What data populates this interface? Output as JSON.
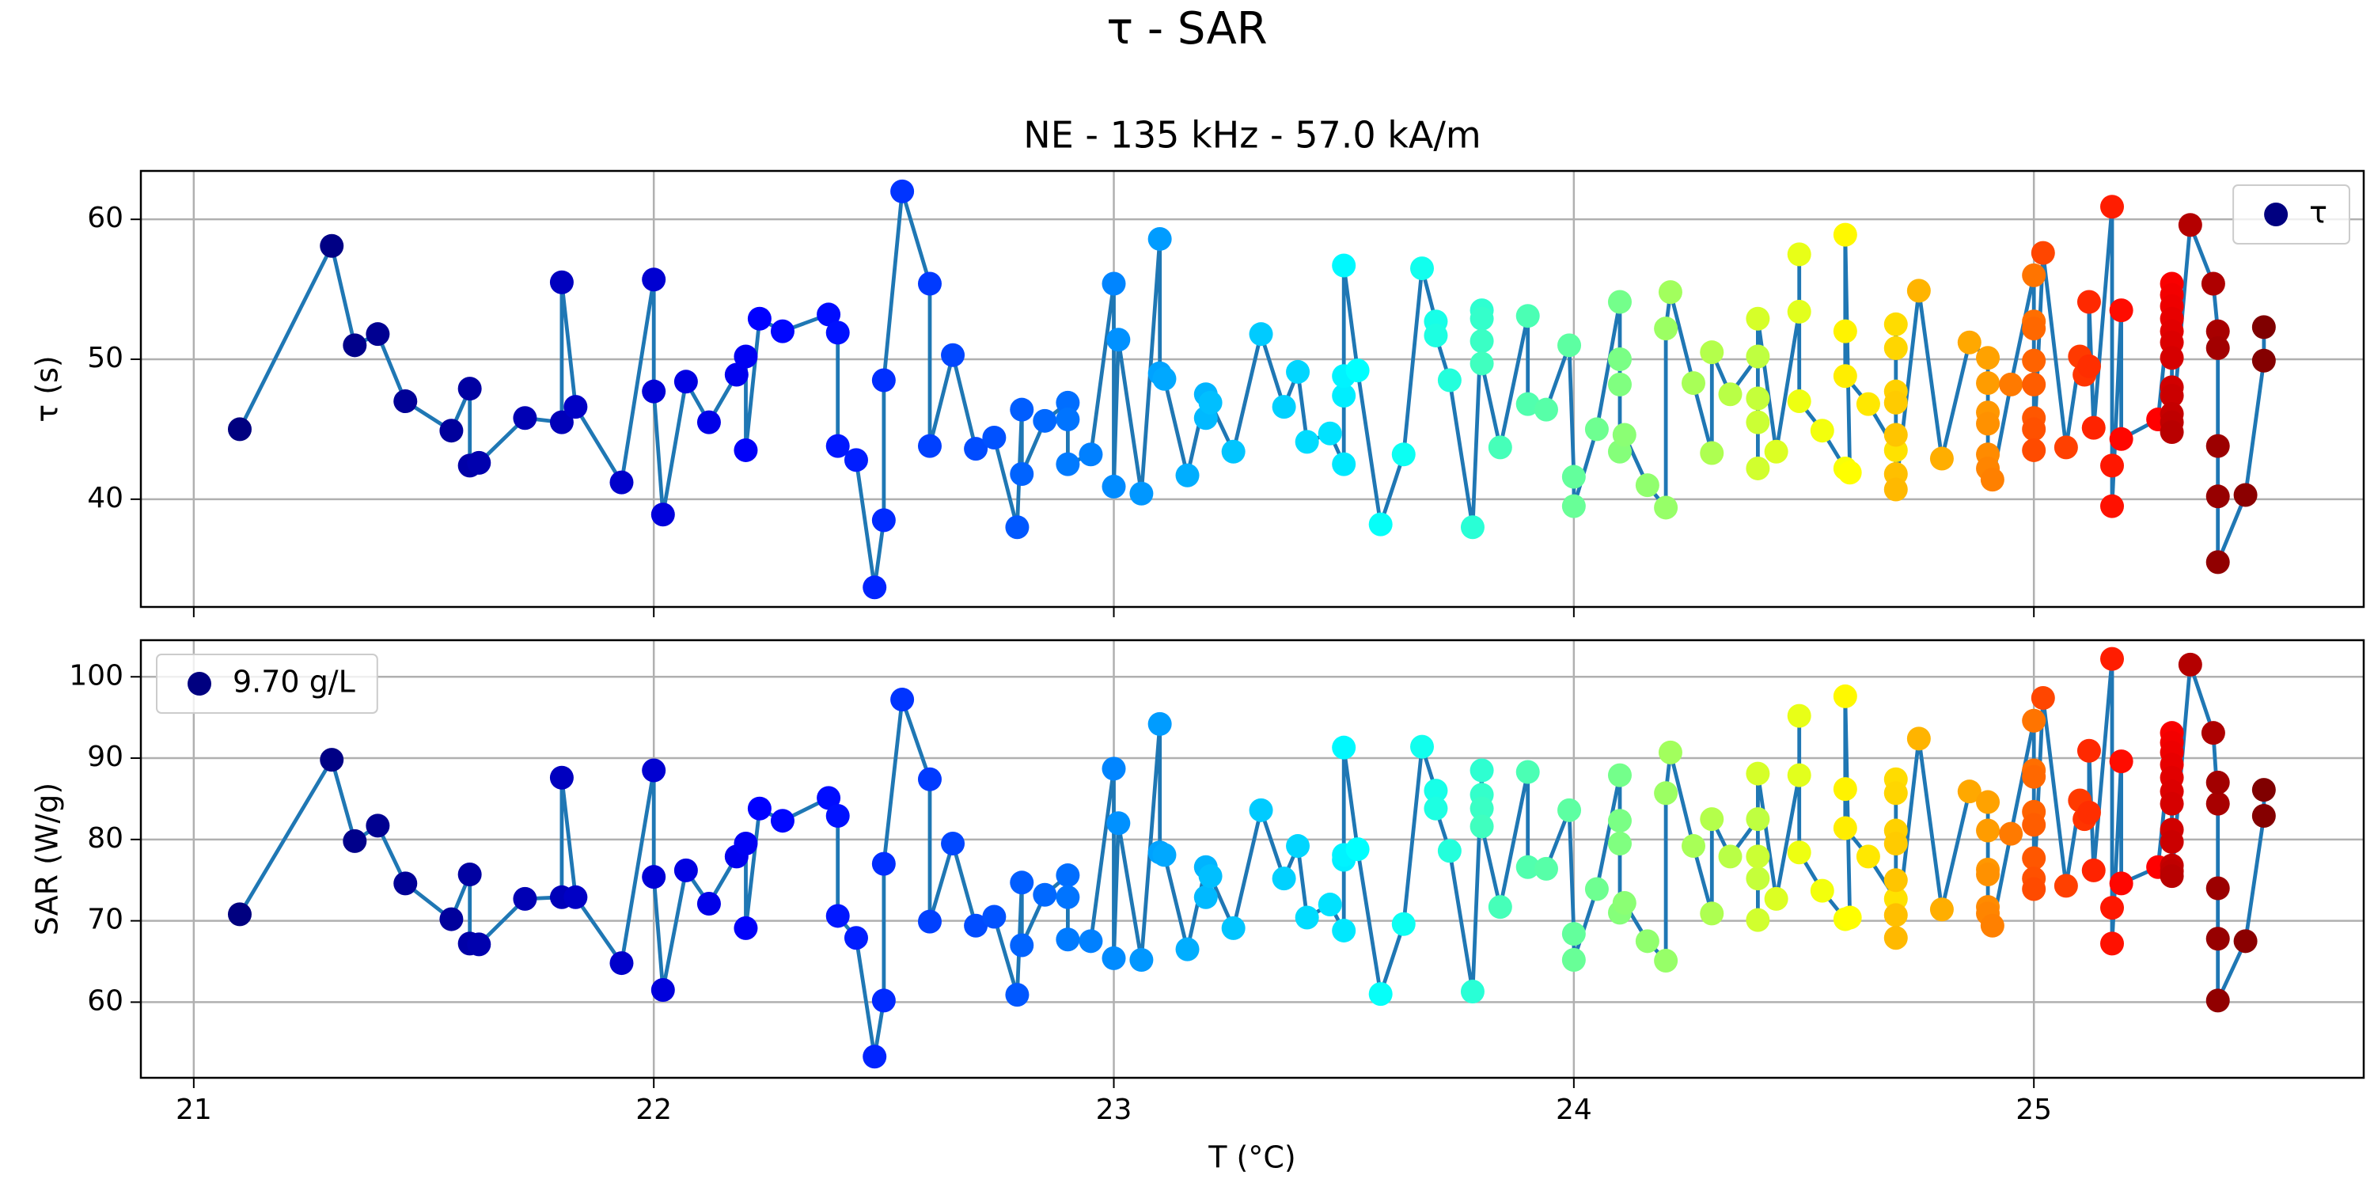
{
  "title": "τ - SAR",
  "chart_data": [
    {
      "type": "line",
      "title": "NE - 135 kHz - 57.0 kA/m",
      "ylabel": "τ (s)",
      "x": [
        21.1,
        21.3,
        21.35,
        21.4,
        21.46,
        21.56,
        21.6,
        21.6,
        21.62,
        21.72,
        21.8,
        21.8,
        21.83,
        21.93,
        22.0,
        22.0,
        22.02,
        22.07,
        22.12,
        22.18,
        22.2,
        22.2,
        22.23,
        22.28,
        22.38,
        22.4,
        22.4,
        22.44,
        22.48,
        22.5,
        22.5,
        22.54,
        22.6,
        22.6,
        22.65,
        22.7,
        22.74,
        22.79,
        22.8,
        22.8,
        22.85,
        22.9,
        22.9,
        22.9,
        22.95,
        23.0,
        23.0,
        23.01,
        23.06,
        23.1,
        23.1,
        23.11,
        23.16,
        23.2,
        23.2,
        23.21,
        23.26,
        23.32,
        23.37,
        23.4,
        23.42,
        23.47,
        23.5,
        23.5,
        23.5,
        23.5,
        23.53,
        23.58,
        23.63,
        23.67,
        23.7,
        23.7,
        23.73,
        23.78,
        23.8,
        23.8,
        23.8,
        23.8,
        23.84,
        23.9,
        23.9,
        23.94,
        23.99,
        24.0,
        24.0,
        24.05,
        24.1,
        24.1,
        24.1,
        24.1,
        24.11,
        24.16,
        24.2,
        24.2,
        24.21,
        24.26,
        24.3,
        24.3,
        24.34,
        24.4,
        24.4,
        24.4,
        24.4,
        24.4,
        24.44,
        24.49,
        24.49,
        24.49,
        24.54,
        24.59,
        24.6,
        24.59,
        24.59,
        24.59,
        24.64,
        24.7,
        24.7,
        24.7,
        24.7,
        24.7,
        24.7,
        24.7,
        24.7,
        24.75,
        24.8,
        24.86,
        24.9,
        24.9,
        24.9,
        24.9,
        24.9,
        24.9,
        24.91,
        24.95,
        25.0,
        25.0,
        25.0,
        25.0,
        25.0,
        25.0,
        25.0,
        25.0,
        25.02,
        25.07,
        25.1,
        25.11,
        25.12,
        25.12,
        25.13,
        25.17,
        25.17,
        25.17,
        25.19,
        25.19,
        25.27,
        25.3,
        25.3,
        25.3,
        25.3,
        25.3,
        25.3,
        25.3,
        25.3,
        25.3,
        25.3,
        25.3,
        25.3,
        25.34,
        25.39,
        25.4,
        25.4,
        25.4,
        25.4,
        25.4,
        25.46,
        25.5,
        25.5
      ],
      "series": [
        {
          "name": "τ",
          "color": "#1f77b4",
          "marker_colormap": "jet",
          "values": [
            45.0,
            58.1,
            51.0,
            51.8,
            47.0,
            44.9,
            47.9,
            42.4,
            42.6,
            45.8,
            45.5,
            55.5,
            46.6,
            41.2,
            55.7,
            47.7,
            38.9,
            48.4,
            45.5,
            48.9,
            50.2,
            43.5,
            52.9,
            52.0,
            53.2,
            51.9,
            43.8,
            42.8,
            33.7,
            38.5,
            48.5,
            62.0,
            55.4,
            43.8,
            50.3,
            43.6,
            44.4,
            38.0,
            46.4,
            41.8,
            45.6,
            46.9,
            45.7,
            42.5,
            43.2,
            55.4,
            40.9,
            51.4,
            40.4,
            58.6,
            49.0,
            48.6,
            41.7,
            47.5,
            45.8,
            46.9,
            43.4,
            51.8,
            46.6,
            49.1,
            44.1,
            44.7,
            42.5,
            47.4,
            48.8,
            56.7,
            49.2,
            38.2,
            43.2,
            56.5,
            52.7,
            51.7,
            48.5,
            38.0,
            53.5,
            52.9,
            51.3,
            49.7,
            43.7,
            53.1,
            46.8,
            46.4,
            51.0,
            41.6,
            39.5,
            45.0,
            54.1,
            50.0,
            48.2,
            43.4,
            44.6,
            41.0,
            39.4,
            52.2,
            54.8,
            48.3,
            43.3,
            50.5,
            47.5,
            50.2,
            47.2,
            45.5,
            42.2,
            52.9,
            43.4,
            53.4,
            57.5,
            47.0,
            44.9,
            42.2,
            41.9,
            58.9,
            52.0,
            48.8,
            46.8,
            43.5,
            52.5,
            50.8,
            47.7,
            46.9,
            44.6,
            41.8,
            40.7,
            54.9,
            42.9,
            51.2,
            50.1,
            48.3,
            46.2,
            45.4,
            43.2,
            42.2,
            41.4,
            48.2,
            56.0,
            52.7,
            52.2,
            49.9,
            48.2,
            45.8,
            45.0,
            43.5,
            57.6,
            43.7,
            50.2,
            48.9,
            49.5,
            54.1,
            45.1,
            60.9,
            42.4,
            39.5,
            53.5,
            44.3,
            45.7,
            55.4,
            54.6,
            53.8,
            52.9,
            52.0,
            51.2,
            50.1,
            48.0,
            47.4,
            46.1,
            45.5,
            44.8,
            59.6,
            55.4,
            52.0,
            50.8,
            43.8,
            40.2,
            35.5,
            40.3,
            49.9,
            52.3
          ]
        }
      ],
      "xlim": [
        20.885,
        25.717
      ],
      "xticks": [
        21,
        22,
        23,
        24,
        25
      ],
      "show_xticklabels": false,
      "ylim": [
        32.3,
        63.46
      ],
      "yticks": [
        40,
        50,
        60
      ],
      "grid": true,
      "legend": "upper right"
    },
    {
      "type": "line",
      "ylabel": "SAR (W/g)",
      "xlabel": "T (°C)",
      "x": [
        21.1,
        21.3,
        21.35,
        21.4,
        21.46,
        21.56,
        21.6,
        21.6,
        21.62,
        21.72,
        21.8,
        21.8,
        21.83,
        21.93,
        22.0,
        22.0,
        22.02,
        22.07,
        22.12,
        22.18,
        22.2,
        22.2,
        22.23,
        22.28,
        22.38,
        22.4,
        22.4,
        22.44,
        22.48,
        22.5,
        22.5,
        22.54,
        22.6,
        22.6,
        22.65,
        22.7,
        22.74,
        22.79,
        22.8,
        22.8,
        22.85,
        22.9,
        22.9,
        22.9,
        22.95,
        23.0,
        23.0,
        23.01,
        23.06,
        23.1,
        23.1,
        23.11,
        23.16,
        23.2,
        23.2,
        23.21,
        23.26,
        23.32,
        23.37,
        23.4,
        23.42,
        23.47,
        23.5,
        23.5,
        23.5,
        23.5,
        23.53,
        23.58,
        23.63,
        23.67,
        23.7,
        23.7,
        23.73,
        23.78,
        23.8,
        23.8,
        23.8,
        23.8,
        23.84,
        23.9,
        23.9,
        23.94,
        23.99,
        24.0,
        24.0,
        24.05,
        24.1,
        24.1,
        24.1,
        24.1,
        24.11,
        24.16,
        24.2,
        24.2,
        24.21,
        24.26,
        24.3,
        24.3,
        24.34,
        24.4,
        24.4,
        24.4,
        24.4,
        24.4,
        24.44,
        24.49,
        24.49,
        24.49,
        24.54,
        24.59,
        24.6,
        24.59,
        24.59,
        24.59,
        24.64,
        24.7,
        24.7,
        24.7,
        24.7,
        24.7,
        24.7,
        24.7,
        24.7,
        24.75,
        24.8,
        24.86,
        24.9,
        24.9,
        24.9,
        24.9,
        24.9,
        24.9,
        24.91,
        24.95,
        25.0,
        25.0,
        25.0,
        25.0,
        25.0,
        25.0,
        25.0,
        25.0,
        25.02,
        25.07,
        25.1,
        25.11,
        25.12,
        25.12,
        25.13,
        25.17,
        25.17,
        25.17,
        25.19,
        25.19,
        25.27,
        25.3,
        25.3,
        25.3,
        25.3,
        25.3,
        25.3,
        25.3,
        25.3,
        25.3,
        25.3,
        25.3,
        25.3,
        25.34,
        25.39,
        25.4,
        25.4,
        25.4,
        25.4,
        25.4,
        25.46,
        25.5,
        25.5
      ],
      "series": [
        {
          "name": "9.70 g/L",
          "color": "#1f77b4",
          "marker_colormap": "jet",
          "values": [
            70.8,
            89.8,
            79.8,
            81.7,
            74.6,
            70.2,
            75.7,
            67.2,
            67.1,
            72.7,
            72.9,
            87.6,
            72.9,
            64.8,
            88.5,
            75.4,
            61.5,
            76.2,
            72.1,
            77.9,
            79.5,
            69.1,
            83.8,
            82.3,
            85.1,
            82.9,
            70.6,
            67.9,
            53.3,
            60.2,
            77.0,
            97.2,
            87.4,
            69.9,
            79.5,
            69.4,
            70.5,
            60.9,
            74.7,
            67.0,
            73.2,
            75.6,
            72.9,
            67.7,
            67.5,
            88.7,
            65.4,
            82.0,
            65.2,
            94.2,
            78.4,
            78.1,
            66.5,
            76.6,
            72.9,
            75.5,
            69.1,
            83.6,
            75.2,
            79.2,
            70.4,
            72.0,
            68.8,
            77.5,
            78.1,
            91.3,
            78.8,
            61.0,
            69.6,
            91.4,
            86.0,
            83.8,
            78.6,
            61.3,
            88.5,
            85.5,
            83.8,
            81.6,
            71.7,
            88.3,
            76.6,
            76.4,
            83.6,
            68.4,
            65.2,
            73.9,
            87.9,
            82.3,
            79.5,
            71.0,
            72.2,
            67.5,
            65.1,
            85.7,
            90.7,
            79.2,
            70.9,
            82.5,
            77.9,
            82.5,
            75.2,
            77.9,
            70.1,
            88.1,
            72.7,
            87.9,
            95.2,
            78.4,
            73.7,
            70.2,
            70.4,
            97.6,
            86.2,
            81.4,
            77.9,
            72.7,
            87.4,
            85.7,
            81.1,
            79.5,
            75.0,
            70.7,
            67.9,
            92.4,
            71.4,
            85.9,
            84.6,
            81.1,
            76.3,
            75.7,
            71.7,
            70.9,
            69.4,
            80.7,
            94.6,
            88.5,
            87.7,
            83.4,
            81.8,
            77.7,
            75.2,
            73.9,
            97.4,
            74.3,
            84.8,
            82.5,
            83.3,
            90.9,
            76.2,
            102.2,
            71.6,
            67.2,
            89.6,
            74.6,
            76.6,
            93.1,
            91.9,
            90.7,
            89.2,
            87.6,
            85.9,
            84.4,
            81.2,
            79.7,
            76.8,
            76.1,
            75.5,
            101.5,
            93.1,
            84.4,
            87.0,
            74.0,
            67.8,
            60.2,
            67.5,
            82.9,
            86.1
          ]
        }
      ],
      "xlim": [
        20.885,
        25.717
      ],
      "xticks": [
        21,
        22,
        23,
        24,
        25
      ],
      "show_xticklabels": true,
      "ylim": [
        50.7,
        104.5
      ],
      "yticks": [
        60,
        70,
        80,
        90,
        100
      ],
      "grid": true,
      "legend": "upper left"
    }
  ]
}
